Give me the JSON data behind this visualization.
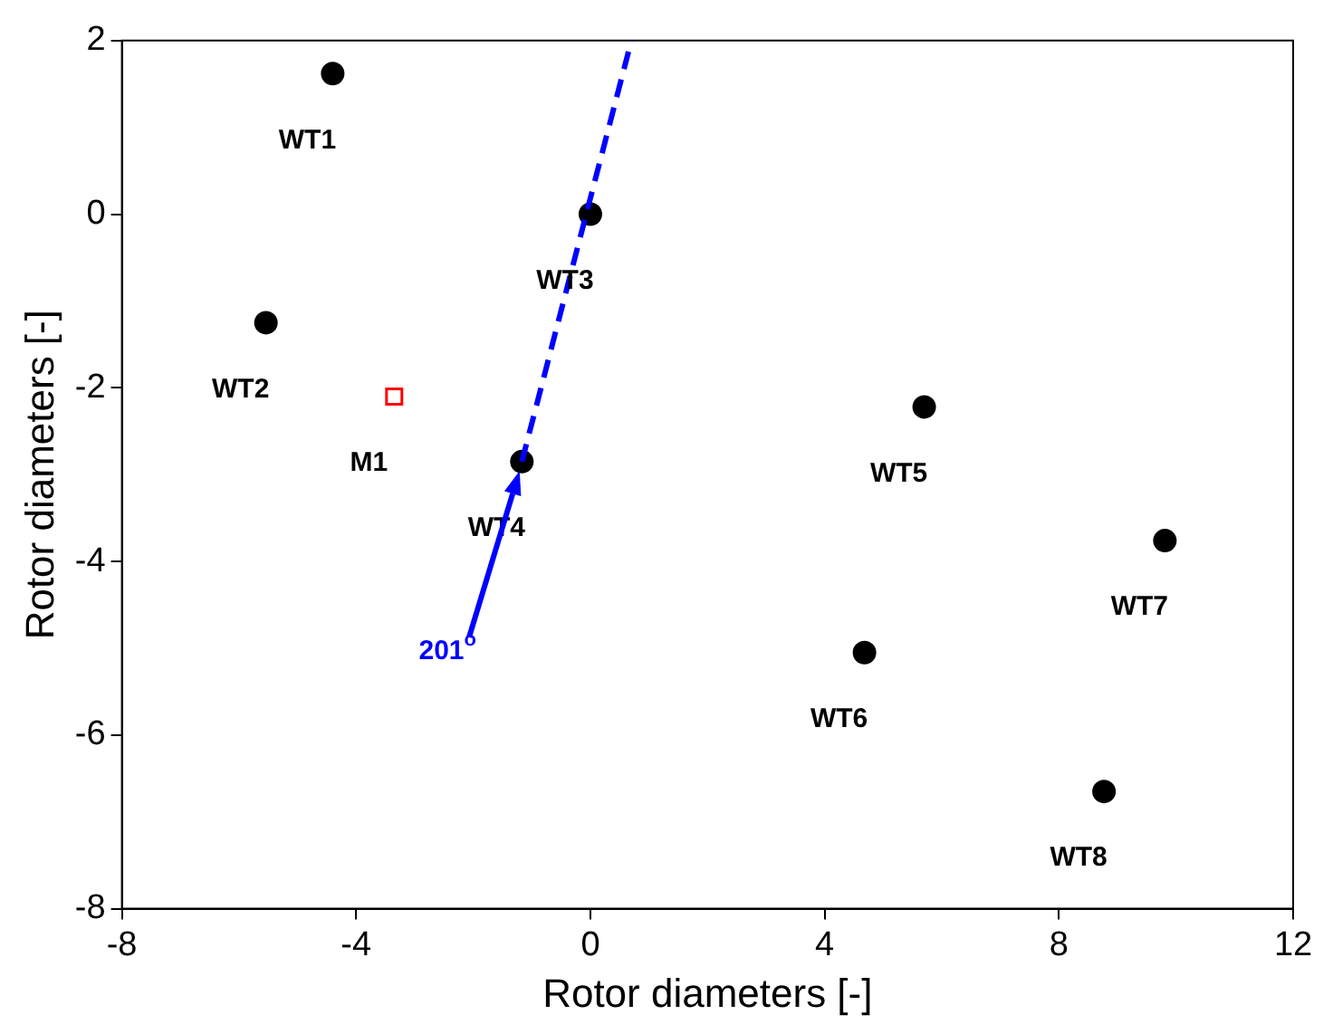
{
  "chart_data": {
    "type": "scatter",
    "xlabel": "Rotor diameters [-]",
    "ylabel": "Rotor diameters [-]",
    "xlim": [
      -8,
      12
    ],
    "xticks": [
      -8,
      -4,
      0,
      4,
      8,
      12
    ],
    "ylim": [
      -8,
      2
    ],
    "yticks": [
      -8,
      -6,
      -4,
      -2,
      0,
      2
    ],
    "grid": false,
    "legend": false,
    "series": [
      {
        "type": "line",
        "color": "#0000ff",
        "line_style": "dashed",
        "marker": "none",
        "x": [
          -1.17,
          0.7
        ],
        "values": [
          -2.85,
          2
        ]
      },
      {
        "color": "#000000",
        "marker": "circle",
        "x": [
          -4.4,
          -5.54,
          0,
          -1.17,
          5.7,
          4.68,
          9.81,
          8.77
        ],
        "values": [
          1.62,
          -1.25,
          0,
          -2.85,
          -2.22,
          -5.05,
          -3.76,
          -6.65
        ]
      },
      {
        "color": "#ff0000",
        "marker": "square",
        "x": [
          -3.35
        ],
        "values": [
          -2.1
        ]
      }
    ],
    "annotations": [
      {
        "text": "WT1",
        "x": -4.4,
        "y": 1.62
      },
      {
        "text": "WT2",
        "x": -5.54,
        "y": -1.25
      },
      {
        "text": "WT3",
        "x": 0,
        "y": 0
      },
      {
        "text": "WT4",
        "x": -1.17,
        "y": -2.85
      },
      {
        "text": "WT5",
        "x": 5.7,
        "y": -2.22
      },
      {
        "text": "WT6",
        "x": 4.68,
        "y": -5.05
      },
      {
        "text": "WT7",
        "x": 9.81,
        "y": -3.76
      },
      {
        "text": "WT8",
        "x": 8.77,
        "y": -6.65
      },
      {
        "text": "M1",
        "x": -3.35,
        "y": -2.1
      },
      "201$^{o}$"
    ]
  }
}
